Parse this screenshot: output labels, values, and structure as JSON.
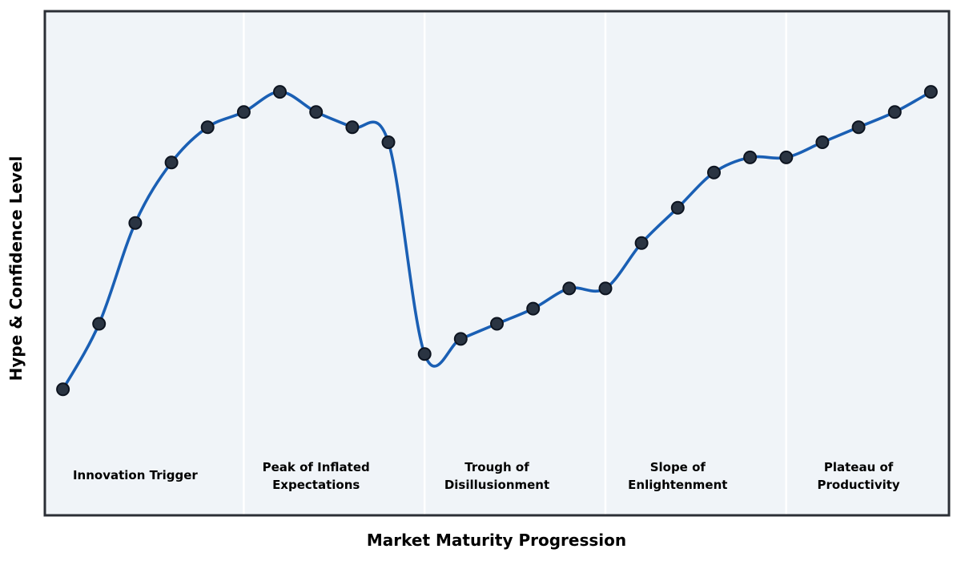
{
  "figure": {
    "background_color": "#ffffff"
  },
  "chart_data": {
    "type": "line",
    "title": "",
    "xlabel": "Market Maturity Progression",
    "ylabel": "Hype & Confidence Level",
    "x": [
      0,
      1,
      2,
      3,
      4,
      5,
      6,
      7,
      8,
      9,
      10,
      11,
      12,
      13,
      14,
      15,
      16,
      17,
      18,
      19,
      20,
      21,
      22,
      23,
      24
    ],
    "series": [
      {
        "name": "Hype & Confidence Level",
        "values": [
          25,
          38,
          58,
          70,
          77,
          80,
          84,
          80,
          77,
          74,
          32,
          35,
          38,
          41,
          45,
          45,
          54,
          61,
          68,
          71,
          71,
          74,
          77,
          80,
          84
        ]
      }
    ],
    "xlim": [
      -0.5,
      24.5
    ],
    "ylim": [
      0,
      100
    ],
    "grid": false,
    "legend": "none",
    "marker": "circle",
    "smooth_spline": true,
    "axis_ticks_visible": false,
    "phases": [
      {
        "label": "Innovation Trigger",
        "lines": [
          "Innovation Trigger"
        ],
        "label_x": 2
      },
      {
        "label": "Peak of Inflated Expectations",
        "lines": [
          "Peak of Inflated",
          "Expectations"
        ],
        "label_x": 7
      },
      {
        "label": "Trough of Disillusionment",
        "lines": [
          "Trough of",
          "Disillusionment"
        ],
        "label_x": 12
      },
      {
        "label": "Slope of Enlightenment",
        "lines": [
          "Slope of",
          "Enlightenment"
        ],
        "label_x": 17
      },
      {
        "label": "Plateau of Productivity",
        "lines": [
          "Plateau of",
          "Productivity"
        ],
        "label_x": 22
      }
    ],
    "phase_boundaries_x": [
      5,
      10,
      15,
      20
    ],
    "colors": {
      "line": "#1a5fb4",
      "marker_fill": "#2a3442",
      "marker_edge": "#0d1420",
      "plot_background": "#f0f4f8",
      "plot_border": "#2b2f36",
      "phase_divider": "#ffffff",
      "label_text": "#000000"
    }
  }
}
